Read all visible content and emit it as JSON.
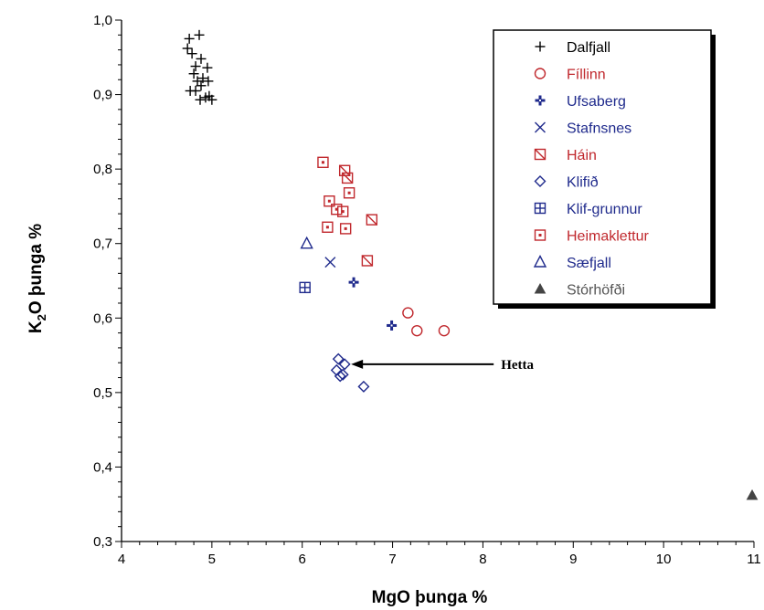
{
  "chart_data": {
    "type": "scatter",
    "title": "",
    "xlabel": "MgO þunga %",
    "ylabel_main": "K",
    "ylabel_sub": "2",
    "ylabel_rest": "O þunga %",
    "xlim": [
      4,
      11
    ],
    "ylim": [
      0.3,
      1.0
    ],
    "x_ticks": [
      4,
      5,
      6,
      7,
      8,
      9,
      10,
      11
    ],
    "x_tick_labels": [
      "4",
      "5",
      "6",
      "7",
      "8",
      "9",
      "10",
      "11"
    ],
    "y_ticks": [
      0.3,
      0.4,
      0.5,
      0.6,
      0.7,
      0.8,
      0.9,
      1.0
    ],
    "y_tick_labels": [
      "0,3",
      "0,4",
      "0,5",
      "0,6",
      "0,7",
      "0,8",
      "0,9",
      "1,0"
    ],
    "grid": false,
    "legend_position": "top-right",
    "series": [
      {
        "name": "Dalfjall",
        "marker": "plus",
        "color": "#000000",
        "points": [
          [
            4.75,
            0.975
          ],
          [
            4.73,
            0.962
          ],
          [
            4.86,
            0.98
          ],
          [
            4.78,
            0.955
          ],
          [
            4.88,
            0.948
          ],
          [
            4.82,
            0.938
          ],
          [
            4.95,
            0.936
          ],
          [
            4.8,
            0.928
          ],
          [
            4.9,
            0.922
          ],
          [
            4.84,
            0.918
          ],
          [
            4.96,
            0.918
          ],
          [
            4.88,
            0.912
          ],
          [
            4.82,
            0.905
          ],
          [
            4.76,
            0.905
          ],
          [
            4.93,
            0.896
          ],
          [
            5.0,
            0.893
          ],
          [
            4.87,
            0.893
          ],
          [
            4.97,
            0.898
          ]
        ]
      },
      {
        "name": "Fíllinn",
        "marker": "circle",
        "color": "#c0282d",
        "points": [
          [
            7.17,
            0.607
          ],
          [
            7.27,
            0.583
          ],
          [
            7.57,
            0.583
          ]
        ]
      },
      {
        "name": "Ufsaberg",
        "marker": "boldplus",
        "color": "#1f2a8c",
        "points": [
          [
            6.57,
            0.648
          ],
          [
            6.99,
            0.59
          ]
        ]
      },
      {
        "name": "Stafnsnes",
        "marker": "cross",
        "color": "#1f2a8c",
        "points": [
          [
            6.31,
            0.675
          ]
        ]
      },
      {
        "name": "Háin",
        "marker": "squarediag",
        "color": "#c0282d",
        "points": [
          [
            6.47,
            0.798
          ],
          [
            6.5,
            0.788
          ],
          [
            6.77,
            0.732
          ],
          [
            6.72,
            0.677
          ]
        ]
      },
      {
        "name": "Klifið",
        "marker": "diamond",
        "color": "#1f2a8c",
        "points": [
          [
            6.4,
            0.545
          ],
          [
            6.47,
            0.538
          ],
          [
            6.38,
            0.53
          ],
          [
            6.45,
            0.524
          ],
          [
            6.68,
            0.508
          ],
          [
            6.42,
            0.522
          ]
        ]
      },
      {
        "name": "Klif-grunnur",
        "marker": "squareplus",
        "color": "#1f2a8c",
        "points": [
          [
            6.03,
            0.641
          ]
        ]
      },
      {
        "name": "Heimaklettur",
        "marker": "squaredot",
        "color": "#c0282d",
        "points": [
          [
            6.23,
            0.809
          ],
          [
            6.52,
            0.768
          ],
          [
            6.3,
            0.757
          ],
          [
            6.45,
            0.743
          ],
          [
            6.38,
            0.746
          ],
          [
            6.28,
            0.722
          ],
          [
            6.48,
            0.72
          ]
        ]
      },
      {
        "name": "Sæfjall",
        "marker": "triangle",
        "color": "#1f2a8c",
        "points": [
          [
            6.05,
            0.7
          ]
        ]
      },
      {
        "name": "Stórhöfði",
        "marker": "triangle-filled",
        "color": "#444444",
        "points": [
          [
            10.98,
            0.362
          ]
        ]
      }
    ],
    "annotations": [
      {
        "text": "Hetta",
        "arrow_to": [
          6.48,
          0.538
        ],
        "text_at": [
          8.2,
          0.544
        ]
      }
    ],
    "legend_text_colors": [
      "#000000",
      "#c0282d",
      "#1f2a8c",
      "#1f2a8c",
      "#c0282d",
      "#1f2a8c",
      "#1f2a8c",
      "#c0282d",
      "#1f2a8c",
      "#555555"
    ]
  }
}
